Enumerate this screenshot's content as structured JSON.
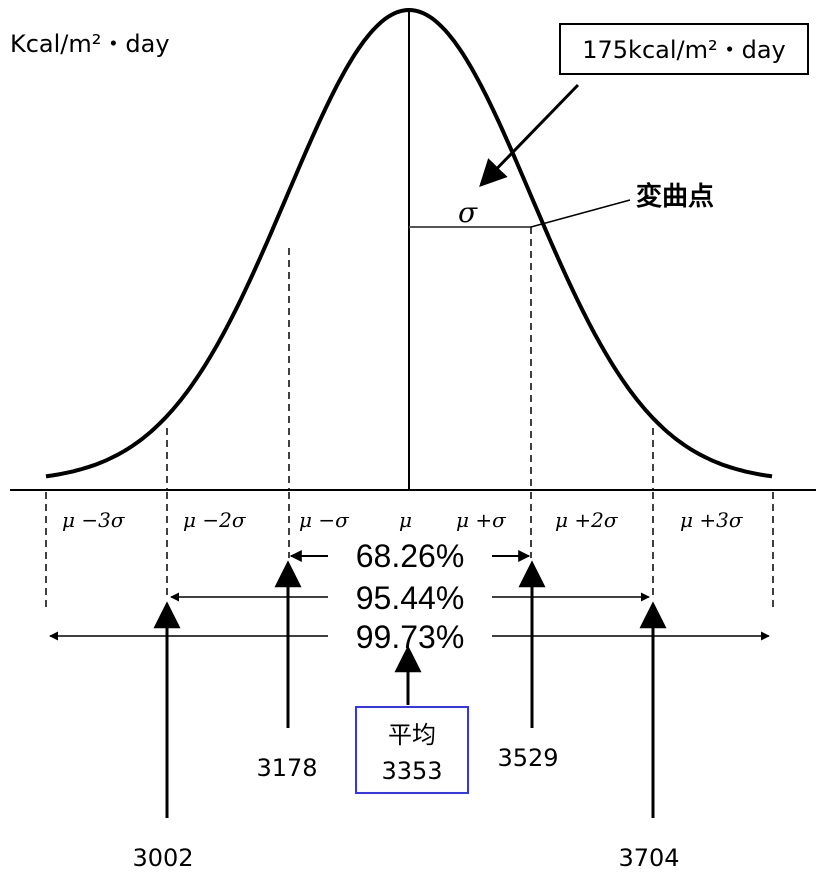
{
  "unit_label": "Kcal/m²・day",
  "callout": {
    "text": "175kcal/m²・day"
  },
  "sigma_label": "σ",
  "inflection_label": "変曲点",
  "axis_ticks": [
    "μ −3σ",
    "μ −2σ",
    "μ −σ",
    "μ",
    "μ +σ",
    "μ +2σ",
    "μ +3σ"
  ],
  "ranges": [
    {
      "label": "68.26%"
    },
    {
      "label": "95.44%"
    },
    {
      "label": "99.73%"
    }
  ],
  "values": {
    "minus2sigma": "3002",
    "minus1sigma": "3178",
    "plus1sigma": "3529",
    "plus2sigma": "3704"
  },
  "mean_box": {
    "title": "平均",
    "value": "3353"
  },
  "colors": {
    "line": "#000000",
    "mean_box_border": "#3333ff"
  }
}
